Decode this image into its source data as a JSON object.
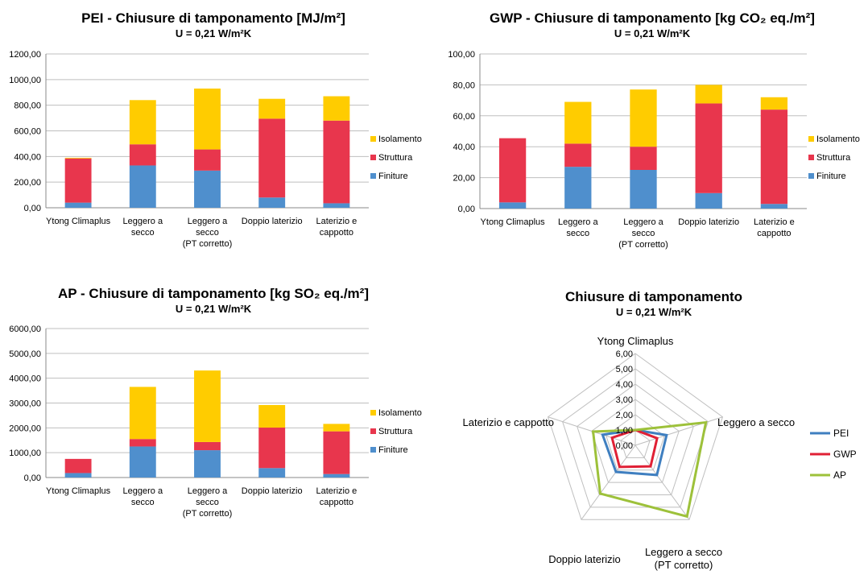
{
  "chart_data": [
    {
      "type": "bar",
      "stacked": true,
      "title": "PEI - Chiusure di tamponamento [MJ/m²]",
      "subtitle": "U = 0,21 W/m²K",
      "categories": [
        "Ytong Climaplus",
        "Leggero a\nsecco",
        "Leggero a\nsecco\n(PT corretto)",
        "Doppio    laterizio",
        "Laterizio e\ncappotto"
      ],
      "series": [
        {
          "name": "Finiture",
          "color": "#4f8fcd",
          "values": [
            40,
            330,
            290,
            80,
            35
          ]
        },
        {
          "name": "Struttura",
          "color": "#e8364d",
          "values": [
            345,
            165,
            165,
            615,
            645
          ]
        },
        {
          "name": "Isolamento",
          "color": "#ffcc00",
          "values": [
            5,
            345,
            475,
            155,
            190
          ]
        }
      ],
      "ylim": [
        0,
        1200
      ],
      "yticks": [
        "0,00",
        "200,00",
        "400,00",
        "600,00",
        "800,00",
        "1000,00",
        "1200,00"
      ],
      "legend": "right"
    },
    {
      "type": "bar",
      "stacked": true,
      "title": "GWP - Chiusure di tamponamento [kg CO₂ eq./m²]",
      "subtitle": "U = 0,21 W/m²K",
      "categories": [
        "Ytong Climaplus",
        "Leggero a\nsecco",
        "Leggero a\nsecco\n(PT corretto)",
        "Doppio    laterizio",
        "Laterizio e\ncappotto"
      ],
      "series": [
        {
          "name": "Finiture",
          "color": "#4f8fcd",
          "values": [
            4,
            27,
            25,
            10,
            3
          ]
        },
        {
          "name": "Struttura",
          "color": "#e8364d",
          "values": [
            41.5,
            15,
            15,
            58,
            61
          ]
        },
        {
          "name": "Isolamento",
          "color": "#ffcc00",
          "values": [
            0,
            27,
            37,
            12,
            8
          ]
        }
      ],
      "ylim": [
        0,
        100
      ],
      "yticks": [
        "0,00",
        "20,00",
        "40,00",
        "60,00",
        "80,00",
        "100,00"
      ],
      "legend": "right"
    },
    {
      "type": "bar",
      "stacked": true,
      "title": "AP - Chiusure di tamponamento [kg SO₂ eq./m²]",
      "subtitle": "U = 0,21 W/m²K",
      "categories": [
        "Ytong Climaplus",
        "Leggero a\nsecco",
        "Leggero a\nsecco\n(PT corretto)",
        "Doppio    laterizio",
        "Laterizio e\ncappotto"
      ],
      "series": [
        {
          "name": "Finiture",
          "color": "#4f8fcd",
          "values": [
            180,
            1250,
            1100,
            380,
            140
          ]
        },
        {
          "name": "Struttura",
          "color": "#e8364d",
          "values": [
            570,
            300,
            330,
            1630,
            1720
          ]
        },
        {
          "name": "Isolamento",
          "color": "#ffcc00",
          "values": [
            0,
            2100,
            2880,
            910,
            300
          ]
        }
      ],
      "ylim": [
        0,
        6000
      ],
      "yticks": [
        "0,00",
        "1000,00",
        "2000,00",
        "3000,00",
        "4000,00",
        "5000,00",
        "6000,00"
      ],
      "legend": "right"
    },
    {
      "type": "radar",
      "title": "Chiusure di tamponamento",
      "subtitle": "U = 0,21 W/m²K",
      "axes": [
        "Ytong Climaplus",
        "Leggero a secco",
        "Leggero a secco\n(PT corretto)",
        "Doppio laterizio",
        "Laterizio e cappotto"
      ],
      "rlim": [
        0,
        6
      ],
      "rticks": [
        "0,00",
        "1,00",
        "2,00",
        "3,00",
        "4,00",
        "5,00",
        "6,00"
      ],
      "series": [
        {
          "name": "PEI",
          "color": "#3f7fc0",
          "values": [
            1.0,
            2.15,
            2.4,
            2.15,
            2.25
          ]
        },
        {
          "name": "GWP",
          "color": "#e02035",
          "values": [
            1.0,
            1.5,
            1.7,
            1.75,
            1.6
          ]
        },
        {
          "name": "AP",
          "color": "#9dc13a",
          "values": [
            1.0,
            4.85,
            5.75,
            3.9,
            2.9
          ]
        }
      ],
      "legend": "right"
    }
  ]
}
